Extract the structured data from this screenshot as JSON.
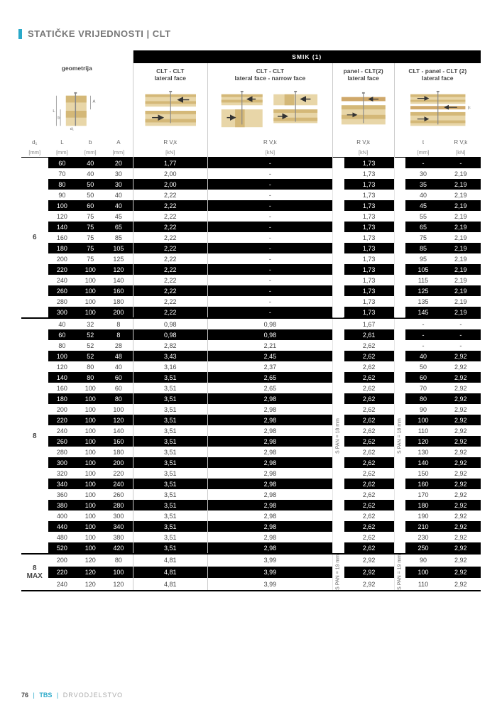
{
  "page_title": "STATIČKE VRIJEDNOSTI | CLT",
  "top_section_label": "SMIK (1)",
  "headers": {
    "geometrija": "geometrija",
    "col1": "CLT - CLT\nlateral face",
    "col2": "CLT - CLT\nlateral face - narrow face",
    "col3": "panel - CLT(2)\nlateral face",
    "col4": "CLT - panel - CLT (2)\nlateral face"
  },
  "column_labels": {
    "d1": "d₁",
    "L": "L",
    "b": "b",
    "A": "A",
    "rvk": "R V,k",
    "t": "t"
  },
  "units": {
    "mm": "[mm]",
    "kn": "[kN]"
  },
  "spin_labels": {
    "s15": "S PAN = 15 mm",
    "s18": "S PAN = 18 mm",
    "s19": "S PAN = 19 mm"
  },
  "d1_groups": [
    "6",
    "8",
    "8\nMAX"
  ],
  "rows": [
    {
      "g": 0,
      "L": "60",
      "b": "40",
      "A": "20",
      "r1": "1,77",
      "r2": "-",
      "r3": "1,73",
      "t": "-",
      "r4": "-"
    },
    {
      "g": 0,
      "L": "70",
      "b": "40",
      "A": "30",
      "r1": "2,00",
      "r2": "-",
      "r3": "1,73",
      "t": "30",
      "r4": "2,19"
    },
    {
      "g": 0,
      "L": "80",
      "b": "50",
      "A": "30",
      "r1": "2,00",
      "r2": "-",
      "r3": "1,73",
      "t": "35",
      "r4": "2,19"
    },
    {
      "g": 0,
      "L": "90",
      "b": "50",
      "A": "40",
      "r1": "2,22",
      "r2": "-",
      "r3": "1,73",
      "t": "40",
      "r4": "2,19"
    },
    {
      "g": 0,
      "L": "100",
      "b": "60",
      "A": "40",
      "r1": "2,22",
      "r2": "-",
      "r3": "1,73",
      "t": "45",
      "r4": "2,19"
    },
    {
      "g": 0,
      "L": "120",
      "b": "75",
      "A": "45",
      "r1": "2,22",
      "r2": "-",
      "r3": "1,73",
      "t": "55",
      "r4": "2,19"
    },
    {
      "g": 0,
      "L": "140",
      "b": "75",
      "A": "65",
      "r1": "2,22",
      "r2": "-",
      "r3": "1,73",
      "t": "65",
      "r4": "2,19"
    },
    {
      "g": 0,
      "L": "160",
      "b": "75",
      "A": "85",
      "r1": "2,22",
      "r2": "-",
      "r3": "1,73",
      "t": "75",
      "r4": "2,19"
    },
    {
      "g": 0,
      "L": "180",
      "b": "75",
      "A": "105",
      "r1": "2,22",
      "r2": "-",
      "r3": "1,73",
      "t": "85",
      "r4": "2,19"
    },
    {
      "g": 0,
      "L": "200",
      "b": "75",
      "A": "125",
      "r1": "2,22",
      "r2": "-",
      "r3": "1,73",
      "t": "95",
      "r4": "2,19"
    },
    {
      "g": 0,
      "L": "220",
      "b": "100",
      "A": "120",
      "r1": "2,22",
      "r2": "-",
      "r3": "1,73",
      "t": "105",
      "r4": "2,19"
    },
    {
      "g": 0,
      "L": "240",
      "b": "100",
      "A": "140",
      "r1": "2,22",
      "r2": "-",
      "r3": "1,73",
      "t": "115",
      "r4": "2,19"
    },
    {
      "g": 0,
      "L": "260",
      "b": "100",
      "A": "160",
      "r1": "2,22",
      "r2": "-",
      "r3": "1,73",
      "t": "125",
      "r4": "2,19"
    },
    {
      "g": 0,
      "L": "280",
      "b": "100",
      "A": "180",
      "r1": "2,22",
      "r2": "-",
      "r3": "1,73",
      "t": "135",
      "r4": "2,19"
    },
    {
      "g": 0,
      "L": "300",
      "b": "100",
      "A": "200",
      "r1": "2,22",
      "r2": "-",
      "r3": "1,73",
      "t": "145",
      "r4": "2,19"
    },
    {
      "g": 1,
      "L": "40",
      "b": "32",
      "A": "8",
      "r1": "0,98",
      "r2": "0,98",
      "r3": "1,67",
      "t": "-",
      "r4": "-"
    },
    {
      "g": 1,
      "L": "60",
      "b": "52",
      "A": "8",
      "r1": "0,98",
      "r2": "0,98",
      "r3": "2,61",
      "t": "-",
      "r4": "-"
    },
    {
      "g": 1,
      "L": "80",
      "b": "52",
      "A": "28",
      "r1": "2,82",
      "r2": "2,21",
      "r3": "2,62",
      "t": "-",
      "r4": "-"
    },
    {
      "g": 1,
      "L": "100",
      "b": "52",
      "A": "48",
      "r1": "3,43",
      "r2": "2,45",
      "r3": "2,62",
      "t": "40",
      "r4": "2,92"
    },
    {
      "g": 1,
      "L": "120",
      "b": "80",
      "A": "40",
      "r1": "3,16",
      "r2": "2,37",
      "r3": "2,62",
      "t": "50",
      "r4": "2,92"
    },
    {
      "g": 1,
      "L": "140",
      "b": "80",
      "A": "60",
      "r1": "3,51",
      "r2": "2,65",
      "r3": "2,62",
      "t": "60",
      "r4": "2,92"
    },
    {
      "g": 1,
      "L": "160",
      "b": "100",
      "A": "60",
      "r1": "3,51",
      "r2": "2,65",
      "r3": "2,62",
      "t": "70",
      "r4": "2,92"
    },
    {
      "g": 1,
      "L": "180",
      "b": "100",
      "A": "80",
      "r1": "3,51",
      "r2": "2,98",
      "r3": "2,62",
      "t": "80",
      "r4": "2,92"
    },
    {
      "g": 1,
      "L": "200",
      "b": "100",
      "A": "100",
      "r1": "3,51",
      "r2": "2,98",
      "r3": "2,62",
      "t": "90",
      "r4": "2,92"
    },
    {
      "g": 1,
      "L": "220",
      "b": "100",
      "A": "120",
      "r1": "3,51",
      "r2": "2,98",
      "r3": "2,62",
      "t": "100",
      "r4": "2,92"
    },
    {
      "g": 1,
      "L": "240",
      "b": "100",
      "A": "140",
      "r1": "3,51",
      "r2": "2,98",
      "r3": "2,62",
      "t": "110",
      "r4": "2,92"
    },
    {
      "g": 1,
      "L": "260",
      "b": "100",
      "A": "160",
      "r1": "3,51",
      "r2": "2,98",
      "r3": "2,62",
      "t": "120",
      "r4": "2,92"
    },
    {
      "g": 1,
      "L": "280",
      "b": "100",
      "A": "180",
      "r1": "3,51",
      "r2": "2,98",
      "r3": "2,62",
      "t": "130",
      "r4": "2,92"
    },
    {
      "g": 1,
      "L": "300",
      "b": "100",
      "A": "200",
      "r1": "3,51",
      "r2": "2,98",
      "r3": "2,62",
      "t": "140",
      "r4": "2,92"
    },
    {
      "g": 1,
      "L": "320",
      "b": "100",
      "A": "220",
      "r1": "3,51",
      "r2": "2,98",
      "r3": "2,62",
      "t": "150",
      "r4": "2,92"
    },
    {
      "g": 1,
      "L": "340",
      "b": "100",
      "A": "240",
      "r1": "3,51",
      "r2": "2,98",
      "r3": "2,62",
      "t": "160",
      "r4": "2,92"
    },
    {
      "g": 1,
      "L": "360",
      "b": "100",
      "A": "260",
      "r1": "3,51",
      "r2": "2,98",
      "r3": "2,62",
      "t": "170",
      "r4": "2,92"
    },
    {
      "g": 1,
      "L": "380",
      "b": "100",
      "A": "280",
      "r1": "3,51",
      "r2": "2,98",
      "r3": "2,62",
      "t": "180",
      "r4": "2,92"
    },
    {
      "g": 1,
      "L": "400",
      "b": "100",
      "A": "300",
      "r1": "3,51",
      "r2": "2,98",
      "r3": "2,62",
      "t": "190",
      "r4": "2,92"
    },
    {
      "g": 1,
      "L": "440",
      "b": "100",
      "A": "340",
      "r1": "3,51",
      "r2": "2,98",
      "r3": "2,62",
      "t": "210",
      "r4": "2,92"
    },
    {
      "g": 1,
      "L": "480",
      "b": "100",
      "A": "380",
      "r1": "3,51",
      "r2": "2,98",
      "r3": "2,62",
      "t": "230",
      "r4": "2,92"
    },
    {
      "g": 1,
      "L": "520",
      "b": "100",
      "A": "420",
      "r1": "3,51",
      "r2": "2,98",
      "r3": "2,62",
      "t": "250",
      "r4": "2,92"
    },
    {
      "g": 2,
      "L": "200",
      "b": "120",
      "A": "80",
      "r1": "4,81",
      "r2": "3,99",
      "r3": "2,92",
      "t": "90",
      "r4": "2,92"
    },
    {
      "g": 2,
      "L": "220",
      "b": "120",
      "A": "100",
      "r1": "4,81",
      "r2": "3,99",
      "r3": "2,92",
      "t": "100",
      "r4": "2,92"
    },
    {
      "g": 2,
      "L": "240",
      "b": "120",
      "A": "120",
      "r1": "4,81",
      "r2": "3,99",
      "r3": "2,92",
      "t": "110",
      "r4": "2,92"
    }
  ],
  "footer": {
    "page": "76",
    "brand": "TBS",
    "category": "DRVODJELSTVO"
  },
  "colors": {
    "accent": "#2aa9c9",
    "wood_light": "#e8d6a8",
    "wood_med": "#d4b878",
    "screw": "#888888",
    "arrow": "#333333"
  },
  "diagram_style": {
    "arrow_stroke": 1.2,
    "screw_stroke": 1.2
  }
}
